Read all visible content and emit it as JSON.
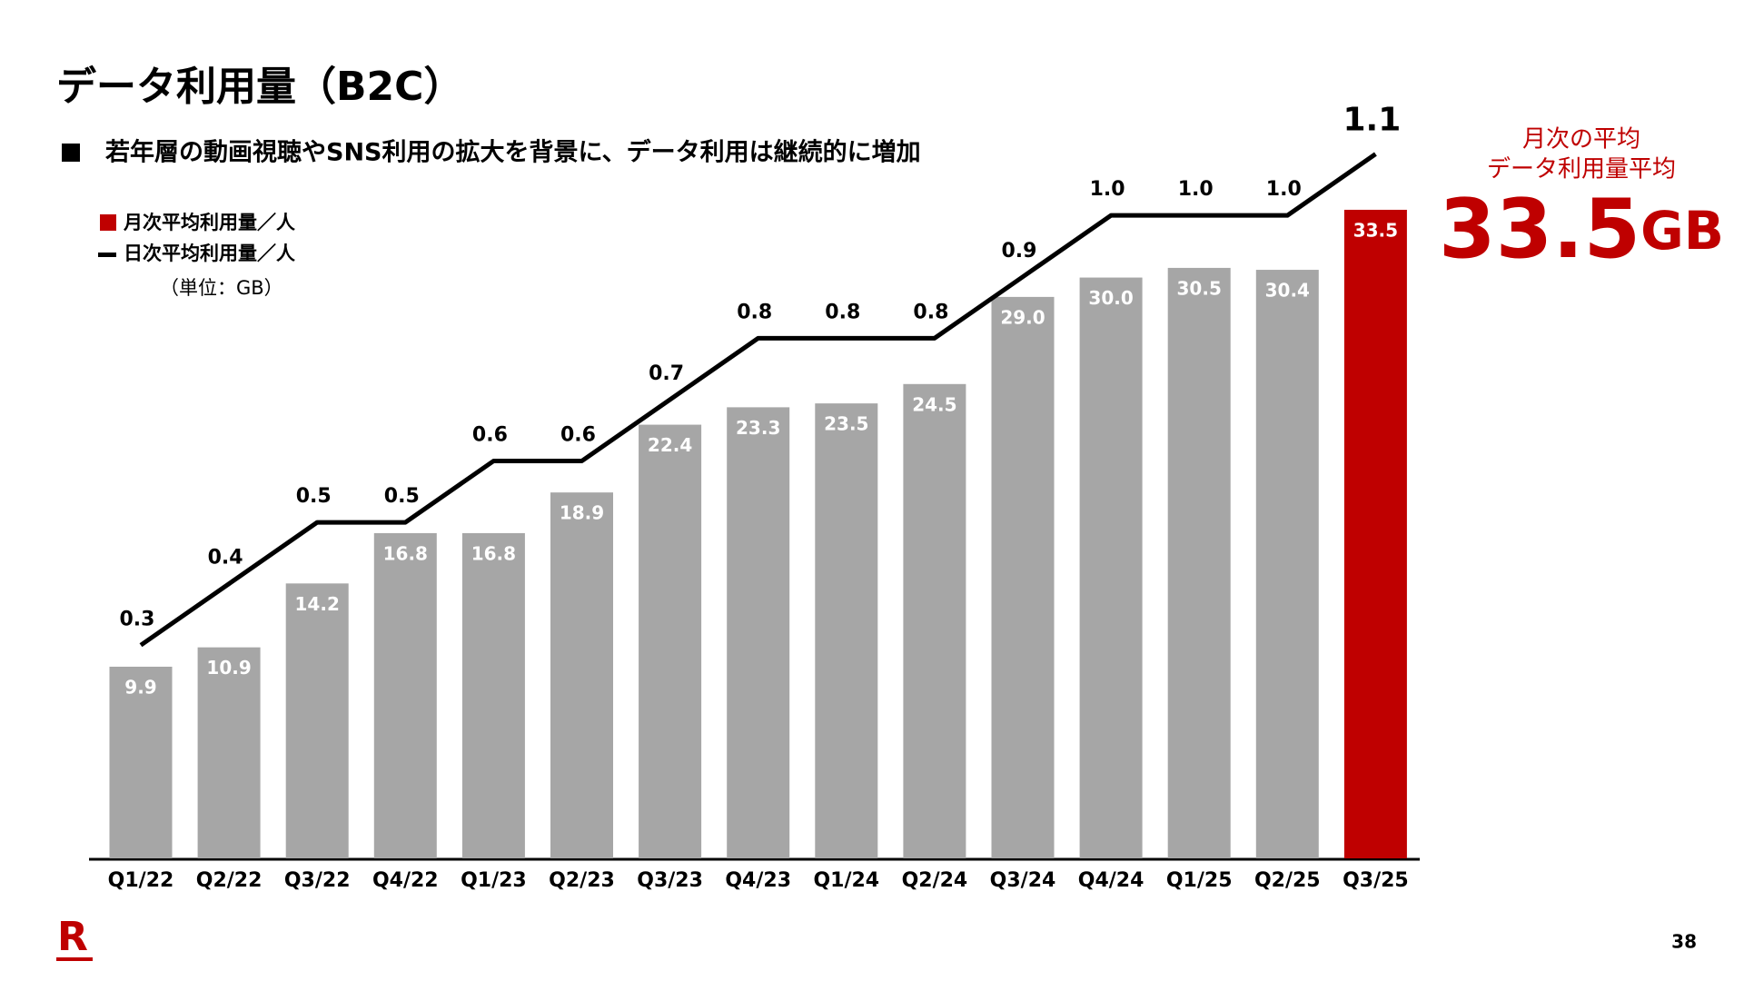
{
  "chart_data": {
    "type": "bar_line",
    "title": "データ利用量（B2C）",
    "subtitle": "若年層の動画視聴やSNS利用の拡大を背景に、データ利用は継続的に増加",
    "unit_note": "（単位：GB）",
    "categories": [
      "Q1/22",
      "Q2/22",
      "Q3/22",
      "Q4/22",
      "Q1/23",
      "Q2/23",
      "Q3/23",
      "Q4/23",
      "Q1/24",
      "Q2/24",
      "Q3/24",
      "Q4/24",
      "Q1/25",
      "Q2/25",
      "Q3/25"
    ],
    "ylim": [
      0,
      35
    ],
    "y2lim": [
      0,
      1.2
    ],
    "series": [
      {
        "name": "月次平均利用量／人",
        "color": "#bf0000",
        "colors": [
          "#a6a6a6",
          "#a6a6a6",
          "#a6a6a6",
          "#a6a6a6",
          "#a6a6a6",
          "#a6a6a6",
          "#a6a6a6",
          "#a6a6a6",
          "#a6a6a6",
          "#a6a6a6",
          "#a6a6a6",
          "#a6a6a6",
          "#a6a6a6",
          "#a6a6a6",
          "#bf0000"
        ],
        "values": [
          9.9,
          10.9,
          14.2,
          16.8,
          16.8,
          18.9,
          22.4,
          23.3,
          23.5,
          24.5,
          29.0,
          30.0,
          30.5,
          30.4,
          33.5
        ],
        "value_labels": [
          "9.9",
          "10.9",
          "14.2",
          "16.8",
          "16.8",
          "18.9",
          "22.4",
          "23.3",
          "23.5",
          "24.5",
          "29.0",
          "30.0",
          "30.5",
          "30.4",
          "33.5"
        ]
      },
      {
        "name": "日次平均利用量／人",
        "color": "#000000",
        "axis": "y2",
        "values": [
          0.3,
          0.4,
          0.5,
          0.5,
          0.6,
          0.6,
          0.7,
          0.8,
          0.8,
          0.8,
          0.9,
          1.0,
          1.0,
          1.0,
          1.1
        ],
        "value_labels": [
          "0.3",
          "0.4",
          "0.5",
          "0.5",
          "0.6",
          "0.6",
          "0.7",
          "0.8",
          "0.8",
          "0.8",
          "0.9",
          "1.0",
          "1.0",
          "1.0",
          "1.1"
        ]
      }
    ],
    "highlight": {
      "line1": "月次の平均",
      "line2": "データ利用量平均",
      "value": "33.5",
      "unit": "GB",
      "color": "#bf0000"
    },
    "logo": "R",
    "page_number": "38"
  }
}
